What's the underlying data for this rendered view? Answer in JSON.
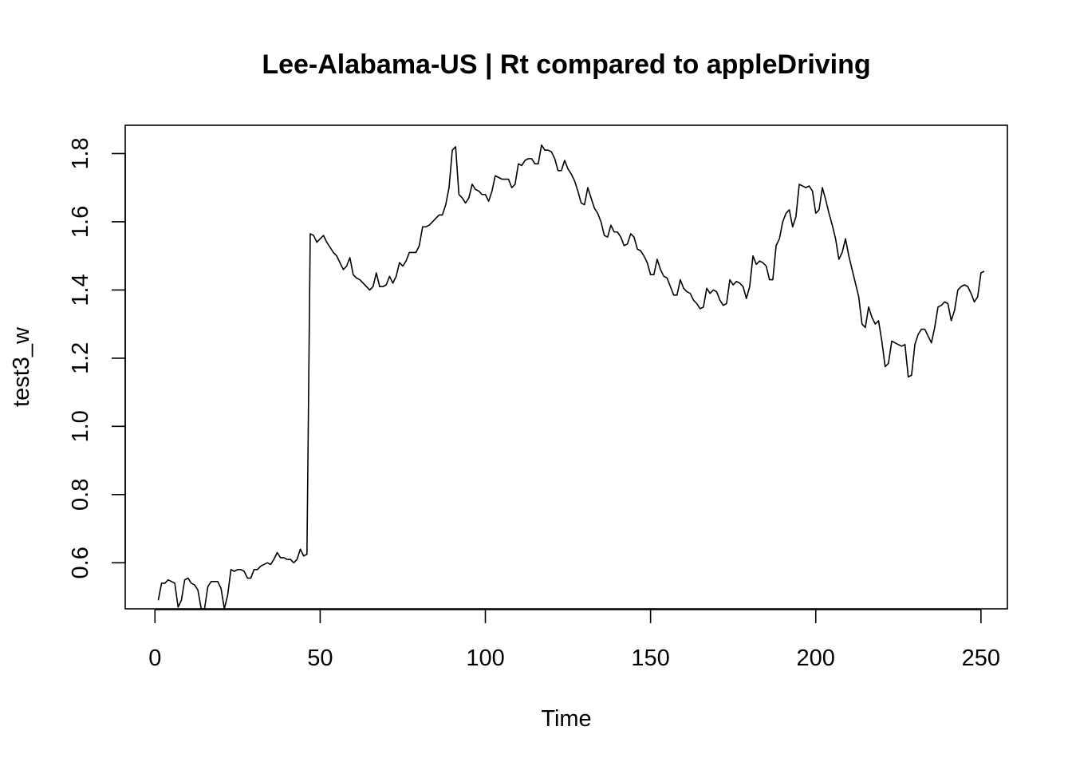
{
  "chart_data": {
    "type": "line",
    "title": "Lee-Alabama-US | Rt compared to appleDriving",
    "xlabel": "Time",
    "ylabel": "test3_w",
    "xlim": [
      -9,
      258
    ],
    "ylim": [
      0.465,
      1.883
    ],
    "x_ticks": [
      0,
      50,
      100,
      150,
      200,
      250
    ],
    "y_ticks": [
      0.6,
      0.8,
      1.0,
      1.2,
      1.4,
      1.6,
      1.8
    ],
    "x_tick_labels": [
      "0",
      "50",
      "100",
      "150",
      "200",
      "250"
    ],
    "y_tick_labels": [
      "0.6",
      "0.8",
      "1.0",
      "1.2",
      "1.4",
      "1.6",
      "1.8"
    ],
    "grid": false,
    "series": [
      {
        "x_start": 1,
        "color": "#000000",
        "values": [
          0.49,
          0.54,
          0.54,
          0.55,
          0.545,
          0.54,
          0.47,
          0.49,
          0.55,
          0.555,
          0.54,
          0.535,
          0.52,
          0.465,
          0.465,
          0.53,
          0.545,
          0.545,
          0.545,
          0.525,
          0.465,
          0.505,
          0.58,
          0.575,
          0.58,
          0.58,
          0.575,
          0.555,
          0.555,
          0.58,
          0.58,
          0.59,
          0.595,
          0.6,
          0.595,
          0.61,
          0.63,
          0.615,
          0.615,
          0.61,
          0.61,
          0.6,
          0.61,
          0.64,
          0.62,
          0.625,
          1.565,
          1.56,
          1.54,
          1.55,
          1.56,
          1.54,
          1.525,
          1.51,
          1.5,
          1.48,
          1.46,
          1.47,
          1.495,
          1.445,
          1.435,
          1.43,
          1.42,
          1.41,
          1.4,
          1.41,
          1.45,
          1.41,
          1.41,
          1.415,
          1.44,
          1.42,
          1.44,
          1.48,
          1.47,
          1.485,
          1.51,
          1.51,
          1.51,
          1.53,
          1.585,
          1.585,
          1.59,
          1.6,
          1.61,
          1.62,
          1.62,
          1.65,
          1.7,
          1.81,
          1.82,
          1.68,
          1.67,
          1.655,
          1.67,
          1.71,
          1.695,
          1.69,
          1.68,
          1.68,
          1.66,
          1.69,
          1.735,
          1.73,
          1.725,
          1.725,
          1.725,
          1.7,
          1.71,
          1.77,
          1.765,
          1.78,
          1.785,
          1.785,
          1.77,
          1.77,
          1.825,
          1.81,
          1.81,
          1.805,
          1.785,
          1.75,
          1.75,
          1.78,
          1.755,
          1.74,
          1.72,
          1.69,
          1.655,
          1.65,
          1.7,
          1.67,
          1.64,
          1.625,
          1.6,
          1.56,
          1.555,
          1.59,
          1.57,
          1.57,
          1.555,
          1.53,
          1.535,
          1.565,
          1.555,
          1.52,
          1.515,
          1.5,
          1.48,
          1.445,
          1.445,
          1.49,
          1.46,
          1.44,
          1.435,
          1.41,
          1.385,
          1.385,
          1.43,
          1.405,
          1.395,
          1.39,
          1.37,
          1.36,
          1.345,
          1.35,
          1.405,
          1.39,
          1.4,
          1.395,
          1.37,
          1.355,
          1.36,
          1.43,
          1.415,
          1.425,
          1.42,
          1.41,
          1.375,
          1.41,
          1.5,
          1.475,
          1.485,
          1.48,
          1.47,
          1.43,
          1.43,
          1.53,
          1.55,
          1.6,
          1.625,
          1.635,
          1.585,
          1.615,
          1.71,
          1.705,
          1.7,
          1.705,
          1.69,
          1.625,
          1.635,
          1.7,
          1.665,
          1.625,
          1.59,
          1.55,
          1.49,
          1.51,
          1.55,
          1.5,
          1.46,
          1.42,
          1.38,
          1.3,
          1.29,
          1.35,
          1.32,
          1.3,
          1.31,
          1.25,
          1.175,
          1.185,
          1.25,
          1.245,
          1.24,
          1.235,
          1.24,
          1.145,
          1.15,
          1.24,
          1.27,
          1.285,
          1.285,
          1.265,
          1.245,
          1.29,
          1.35,
          1.355,
          1.365,
          1.36,
          1.31,
          1.34,
          1.4,
          1.41,
          1.415,
          1.41,
          1.39,
          1.365,
          1.38,
          1.45,
          1.455
        ]
      }
    ]
  }
}
